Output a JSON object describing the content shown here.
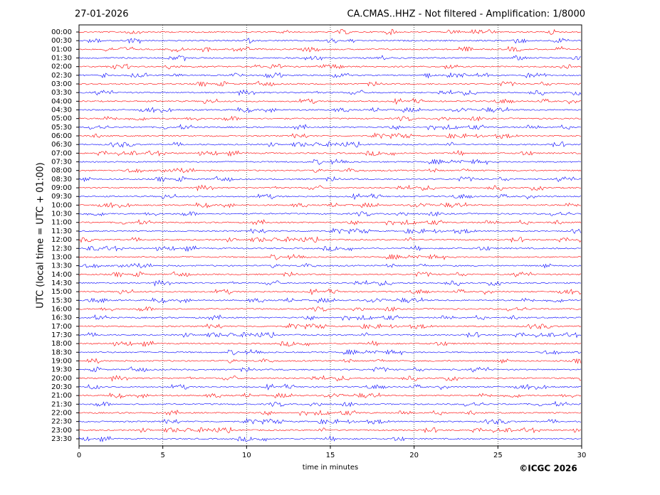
{
  "chart_data": {
    "type": "helicorder",
    "title": "CA.CMAS..HHZ - Not filtered - Amplification: 1/8000",
    "date": "27-01-2026",
    "ylabel": "UTC (local time = UTC + 01:00)",
    "xlabel": "time in minutes",
    "credit": "©ICGC 2026",
    "xlim": [
      0,
      30
    ],
    "xticks": [
      0,
      5,
      10,
      15,
      20,
      25,
      30
    ],
    "grid": true,
    "colors": [
      "#ff0000",
      "#0000ff"
    ],
    "categories": [
      "00:00",
      "00:30",
      "01:00",
      "01:30",
      "02:00",
      "02:30",
      "03:00",
      "03:30",
      "04:00",
      "04:30",
      "05:00",
      "05:30",
      "06:00",
      "06:30",
      "07:00",
      "07:30",
      "08:00",
      "08:30",
      "09:00",
      "09:30",
      "10:00",
      "10:30",
      "11:00",
      "11:30",
      "12:00",
      "12:30",
      "13:00",
      "13:30",
      "14:00",
      "14:30",
      "15:00",
      "15:30",
      "16:00",
      "16:30",
      "17:00",
      "17:30",
      "18:00",
      "18:30",
      "19:00",
      "19:30",
      "20:00",
      "20:30",
      "21:00",
      "21:30",
      "22:00",
      "22:30",
      "23:00",
      "23:30"
    ]
  }
}
